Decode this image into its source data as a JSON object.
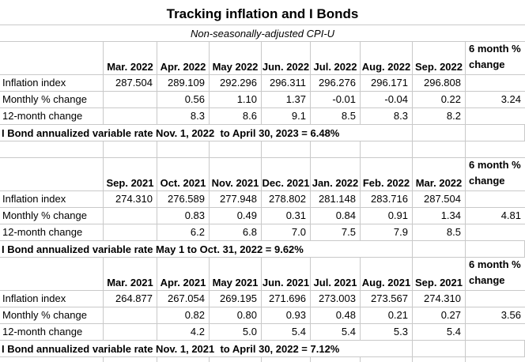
{
  "sheet": {
    "title": "Tracking inflation and I Bonds",
    "subtitle": "Non-seasonally-adjusted CPI-U",
    "six_month_header": "6 month % change",
    "gridline_color": "#c9c9c9",
    "text_color": "#000000"
  },
  "tables": [
    {
      "months": [
        "Mar. 2022",
        "Apr. 2022",
        "May 2022",
        "Jun. 2022",
        "Jul. 2022",
        "Aug. 2022",
        "Sep. 2022"
      ],
      "rows": [
        {
          "label": "Inflation index",
          "values": [
            "287.504",
            "289.109",
            "292.296",
            "296.311",
            "296.276",
            "296.171",
            "296.808"
          ],
          "six_month": ""
        },
        {
          "label": "Monthly % change",
          "values": [
            "",
            "0.56",
            "1.10",
            "1.37",
            "-0.01",
            "-0.04",
            "0.22"
          ],
          "six_month": "3.24"
        },
        {
          "label": "12-month change",
          "values": [
            "",
            "8.3",
            "8.6",
            "9.1",
            "8.5",
            "8.3",
            "8.2"
          ],
          "six_month": ""
        }
      ],
      "footer": "I Bond annualized variable rate Nov. 1, 2022  to April 30, 2023 = 6.48%"
    },
    {
      "months": [
        "Sep. 2021",
        "Oct. 2021",
        "Nov. 2021",
        "Dec. 2021",
        "Jan. 2022",
        "Feb. 2022",
        "Mar. 2022"
      ],
      "rows": [
        {
          "label": "Inflation index",
          "values": [
            "274.310",
            "276.589",
            "277.948",
            "278.802",
            "281.148",
            "283.716",
            "287.504"
          ],
          "six_month": ""
        },
        {
          "label": "Monthly % change",
          "values": [
            "",
            "0.83",
            "0.49",
            "0.31",
            "0.84",
            "0.91",
            "1.34"
          ],
          "six_month": "4.81"
        },
        {
          "label": "12-month change",
          "values": [
            "",
            "6.2",
            "6.8",
            "7.0",
            "7.5",
            "7.9",
            "8.5"
          ],
          "six_month": ""
        }
      ],
      "footer": "I Bond annualized variable rate May 1 to Oct. 31, 2022 = 9.62%"
    },
    {
      "months": [
        "Mar. 2021",
        "Apr. 2021",
        "May 2021",
        "Jun. 2021",
        "Jul. 2021",
        "Aug. 2021",
        "Sep. 2021"
      ],
      "rows": [
        {
          "label": "Inflation index",
          "values": [
            "264.877",
            "267.054",
            "269.195",
            "271.696",
            "273.003",
            "273.567",
            "274.310"
          ],
          "six_month": ""
        },
        {
          "label": "Monthly % change",
          "values": [
            "",
            "0.82",
            "0.80",
            "0.93",
            "0.48",
            "0.21",
            "0.27"
          ],
          "six_month": "3.56"
        },
        {
          "label": "12-month change",
          "values": [
            "",
            "4.2",
            "5.0",
            "5.4",
            "5.4",
            "5.3",
            "5.4"
          ],
          "six_month": ""
        }
      ],
      "footer": "I Bond annualized variable rate Nov. 1, 2021  to April 30, 2022 = 7.12%"
    }
  ]
}
